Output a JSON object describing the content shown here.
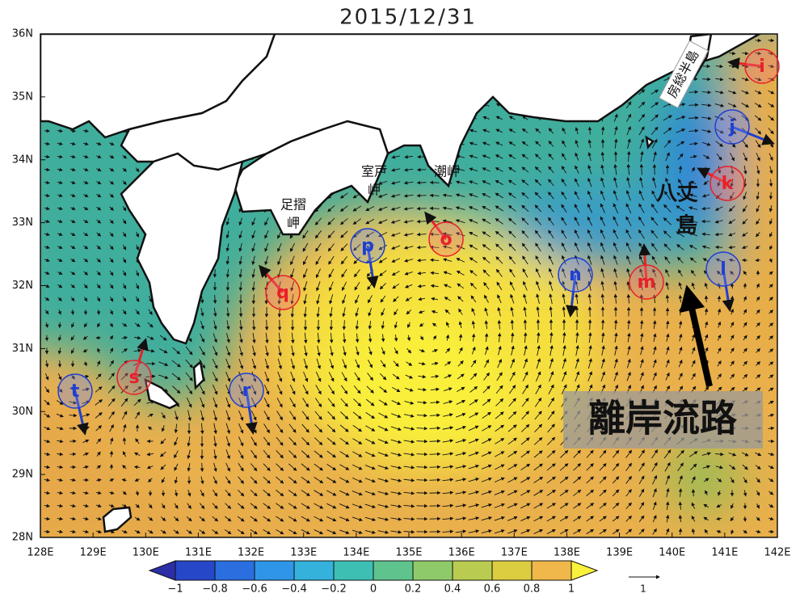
{
  "title": "2015/12/31",
  "lat_ticks": [
    "28N",
    "29N",
    "30N",
    "31N",
    "32N",
    "33N",
    "34N",
    "35N",
    "36N"
  ],
  "lon_ticks": [
    "128E",
    "129E",
    "130E",
    "131E",
    "132E",
    "133E",
    "134E",
    "135E",
    "136E",
    "137E",
    "138E",
    "139E",
    "140E",
    "141E",
    "142E"
  ],
  "places": [
    {
      "lines": [
        "房総半島"
      ]
    },
    {
      "lines": [
        "足摺",
        "岬"
      ]
    },
    {
      "lines": [
        "室戸",
        "岬"
      ]
    },
    {
      "lines": [
        "潮岬"
      ]
    },
    {
      "lines": [
        "八丈",
        "島"
      ]
    }
  ],
  "markers": [
    {
      "label": "i",
      "color": "red"
    },
    {
      "label": "j",
      "color": "blue"
    },
    {
      "label": "k",
      "color": "red"
    },
    {
      "label": "l",
      "color": "blue"
    },
    {
      "label": "m",
      "color": "red"
    },
    {
      "label": "n",
      "color": "blue"
    },
    {
      "label": "o",
      "color": "red"
    },
    {
      "label": "p",
      "color": "blue"
    },
    {
      "label": "q",
      "color": "red"
    },
    {
      "label": "r",
      "color": "blue"
    },
    {
      "label": "s",
      "color": "red"
    },
    {
      "label": "t",
      "color": "blue"
    }
  ],
  "annotation": "離岸流路",
  "colorbar": {
    "ticks": [
      "−1",
      "−0.8",
      "−0.6",
      "−0.4",
      "−0.2",
      "0",
      "0.2",
      "0.4",
      "0.6",
      "0.8",
      "1"
    ]
  },
  "vector_scale": "1"
}
